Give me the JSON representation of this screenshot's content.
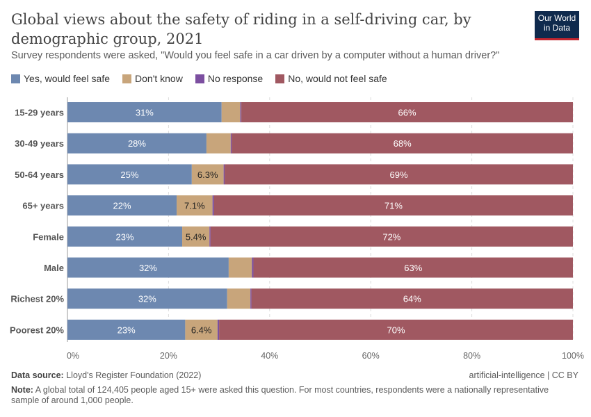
{
  "header": {
    "title": "Global views about the safety of riding in a self-driving car, by demographic group, 2021",
    "subtitle": "Survey respondents were asked, \"Would you feel safe in a car driven by a computer without a human driver?\"",
    "logo": "Our World in Data"
  },
  "chart_data": {
    "type": "bar",
    "orientation": "horizontal",
    "stacked": true,
    "categories": [
      "15-29 years",
      "30-49 years",
      "50-64 years",
      "65+ years",
      "Female",
      "Male",
      "Richest 20%",
      "Poorest 20%"
    ],
    "series": [
      {
        "name": "Yes, would feel safe",
        "color": "#6d88b0",
        "values": [
          30.5,
          27.5,
          24.6,
          21.6,
          22.7,
          31.9,
          31.6,
          23.3
        ],
        "labels": [
          "31%",
          "28%",
          "25%",
          "22%",
          "23%",
          "32%",
          "32%",
          "23%"
        ]
      },
      {
        "name": "Don't know",
        "color": "#c8a57b",
        "values": [
          3.7,
          4.8,
          6.3,
          7.1,
          5.4,
          4.6,
          4.6,
          6.4
        ],
        "labels": [
          "",
          "",
          "6.3%",
          "7.1%",
          "5.4%",
          "",
          "",
          "6.4%"
        ]
      },
      {
        "name": "No response",
        "color": "#7c4fa0",
        "values": [
          0.2,
          0.2,
          0.2,
          0.3,
          0.2,
          0.3,
          0.2,
          0.3
        ],
        "labels": [
          "",
          "",
          "",
          "",
          "",
          "",
          "",
          ""
        ]
      },
      {
        "name": "No, would not feel safe",
        "color": "#a05861",
        "values": [
          65.6,
          67.5,
          68.9,
          71.0,
          71.7,
          63.2,
          63.6,
          70.0
        ],
        "labels": [
          "66%",
          "68%",
          "69%",
          "71%",
          "72%",
          "63%",
          "64%",
          "70%"
        ]
      }
    ],
    "xlim": [
      0,
      100
    ],
    "xticks": [
      "0%",
      "20%",
      "40%",
      "60%",
      "80%",
      "100%"
    ],
    "grid": "vertical dashed",
    "legend": "top-left"
  },
  "footer": {
    "source_label": "Data source:",
    "source": "Lloyd's Register Foundation (2022)",
    "license": "artificial-intelligence | CC BY",
    "note_label": "Note:",
    "note": "A global total of 124,405 people aged 15+ were asked this question. For most countries, respondents were a nationally representative sample of around 1,000 people."
  }
}
